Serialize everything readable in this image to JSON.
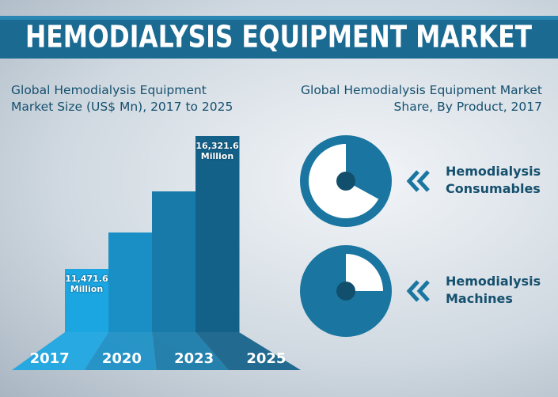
{
  "title": "HEMODIALYSIS EQUIPMENT MARKET",
  "chart_data": [
    {
      "type": "bar",
      "title": "Global Hemodialysis Equipment Market Size (US$ Mn), 2017 to 2025",
      "categories": [
        "2017",
        "2020",
        "2023",
        "2025"
      ],
      "values": [
        11471.6,
        12800,
        14300,
        16321.6
      ],
      "value_labels": [
        "11,471.6 Million",
        null,
        null,
        "16,321.6 Million"
      ],
      "colors": [
        "#1ba6e2",
        "#1a8fc6",
        "#177aa8",
        "#136189"
      ]
    },
    {
      "type": "pie",
      "title": "Global Hemodialysis Equipment Market Share, By Product, 2017",
      "categories": [
        "Hemodialysis Consumables",
        "Hemodialysis Machines"
      ],
      "values": [
        67,
        25
      ],
      "color": "#1a76a0"
    }
  ]
}
